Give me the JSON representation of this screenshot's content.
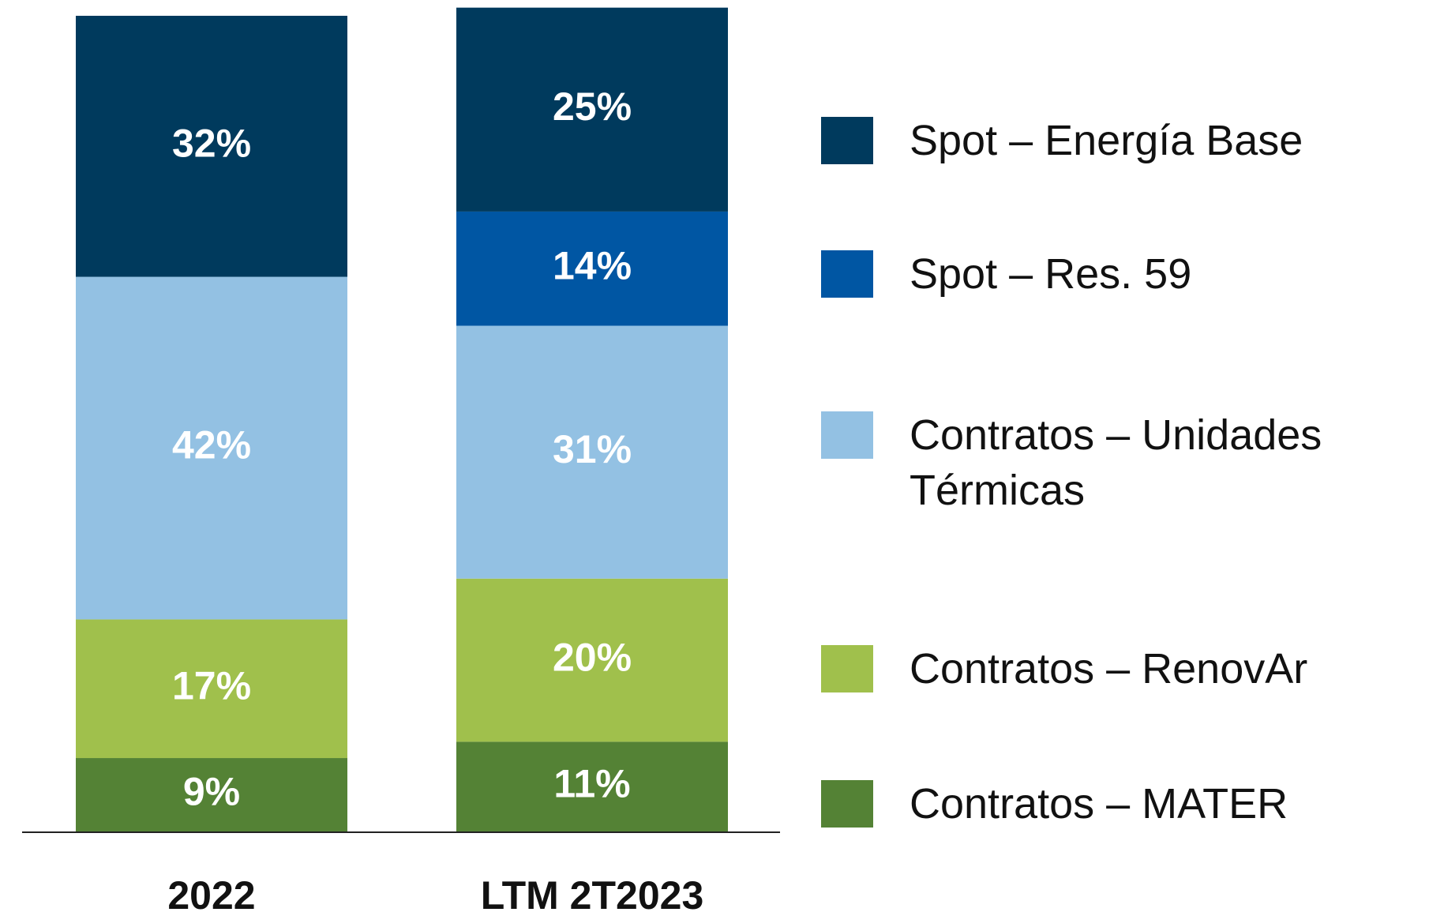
{
  "chart_data": {
    "type": "stacked_bar",
    "categories": [
      "2022",
      "LTM 2T2023"
    ],
    "series": [
      {
        "name": "Spot – Energía Base",
        "color": "#003a5d",
        "values": [
          32,
          25
        ],
        "value_labels": [
          "32%",
          "25%"
        ]
      },
      {
        "name": "Spot – Res. 59",
        "color": "#0056a3",
        "values": [
          null,
          14
        ],
        "value_labels": [
          null,
          "14%"
        ]
      },
      {
        "name": "Contratos – Unidades Térmicas",
        "color": "#93c1e3",
        "values": [
          42,
          31
        ],
        "value_labels": [
          "42%",
          "31%"
        ]
      },
      {
        "name": "Contratos – RenovAr",
        "color": "#a0c04c",
        "values": [
          17,
          20
        ],
        "value_labels": [
          "17%",
          "20%"
        ]
      },
      {
        "name": "Contratos – MATER",
        "color": "#548235",
        "values": [
          9,
          11
        ],
        "value_labels": [
          "9%",
          "11%"
        ]
      }
    ],
    "ylim": [
      0,
      100
    ],
    "legend": "right"
  }
}
